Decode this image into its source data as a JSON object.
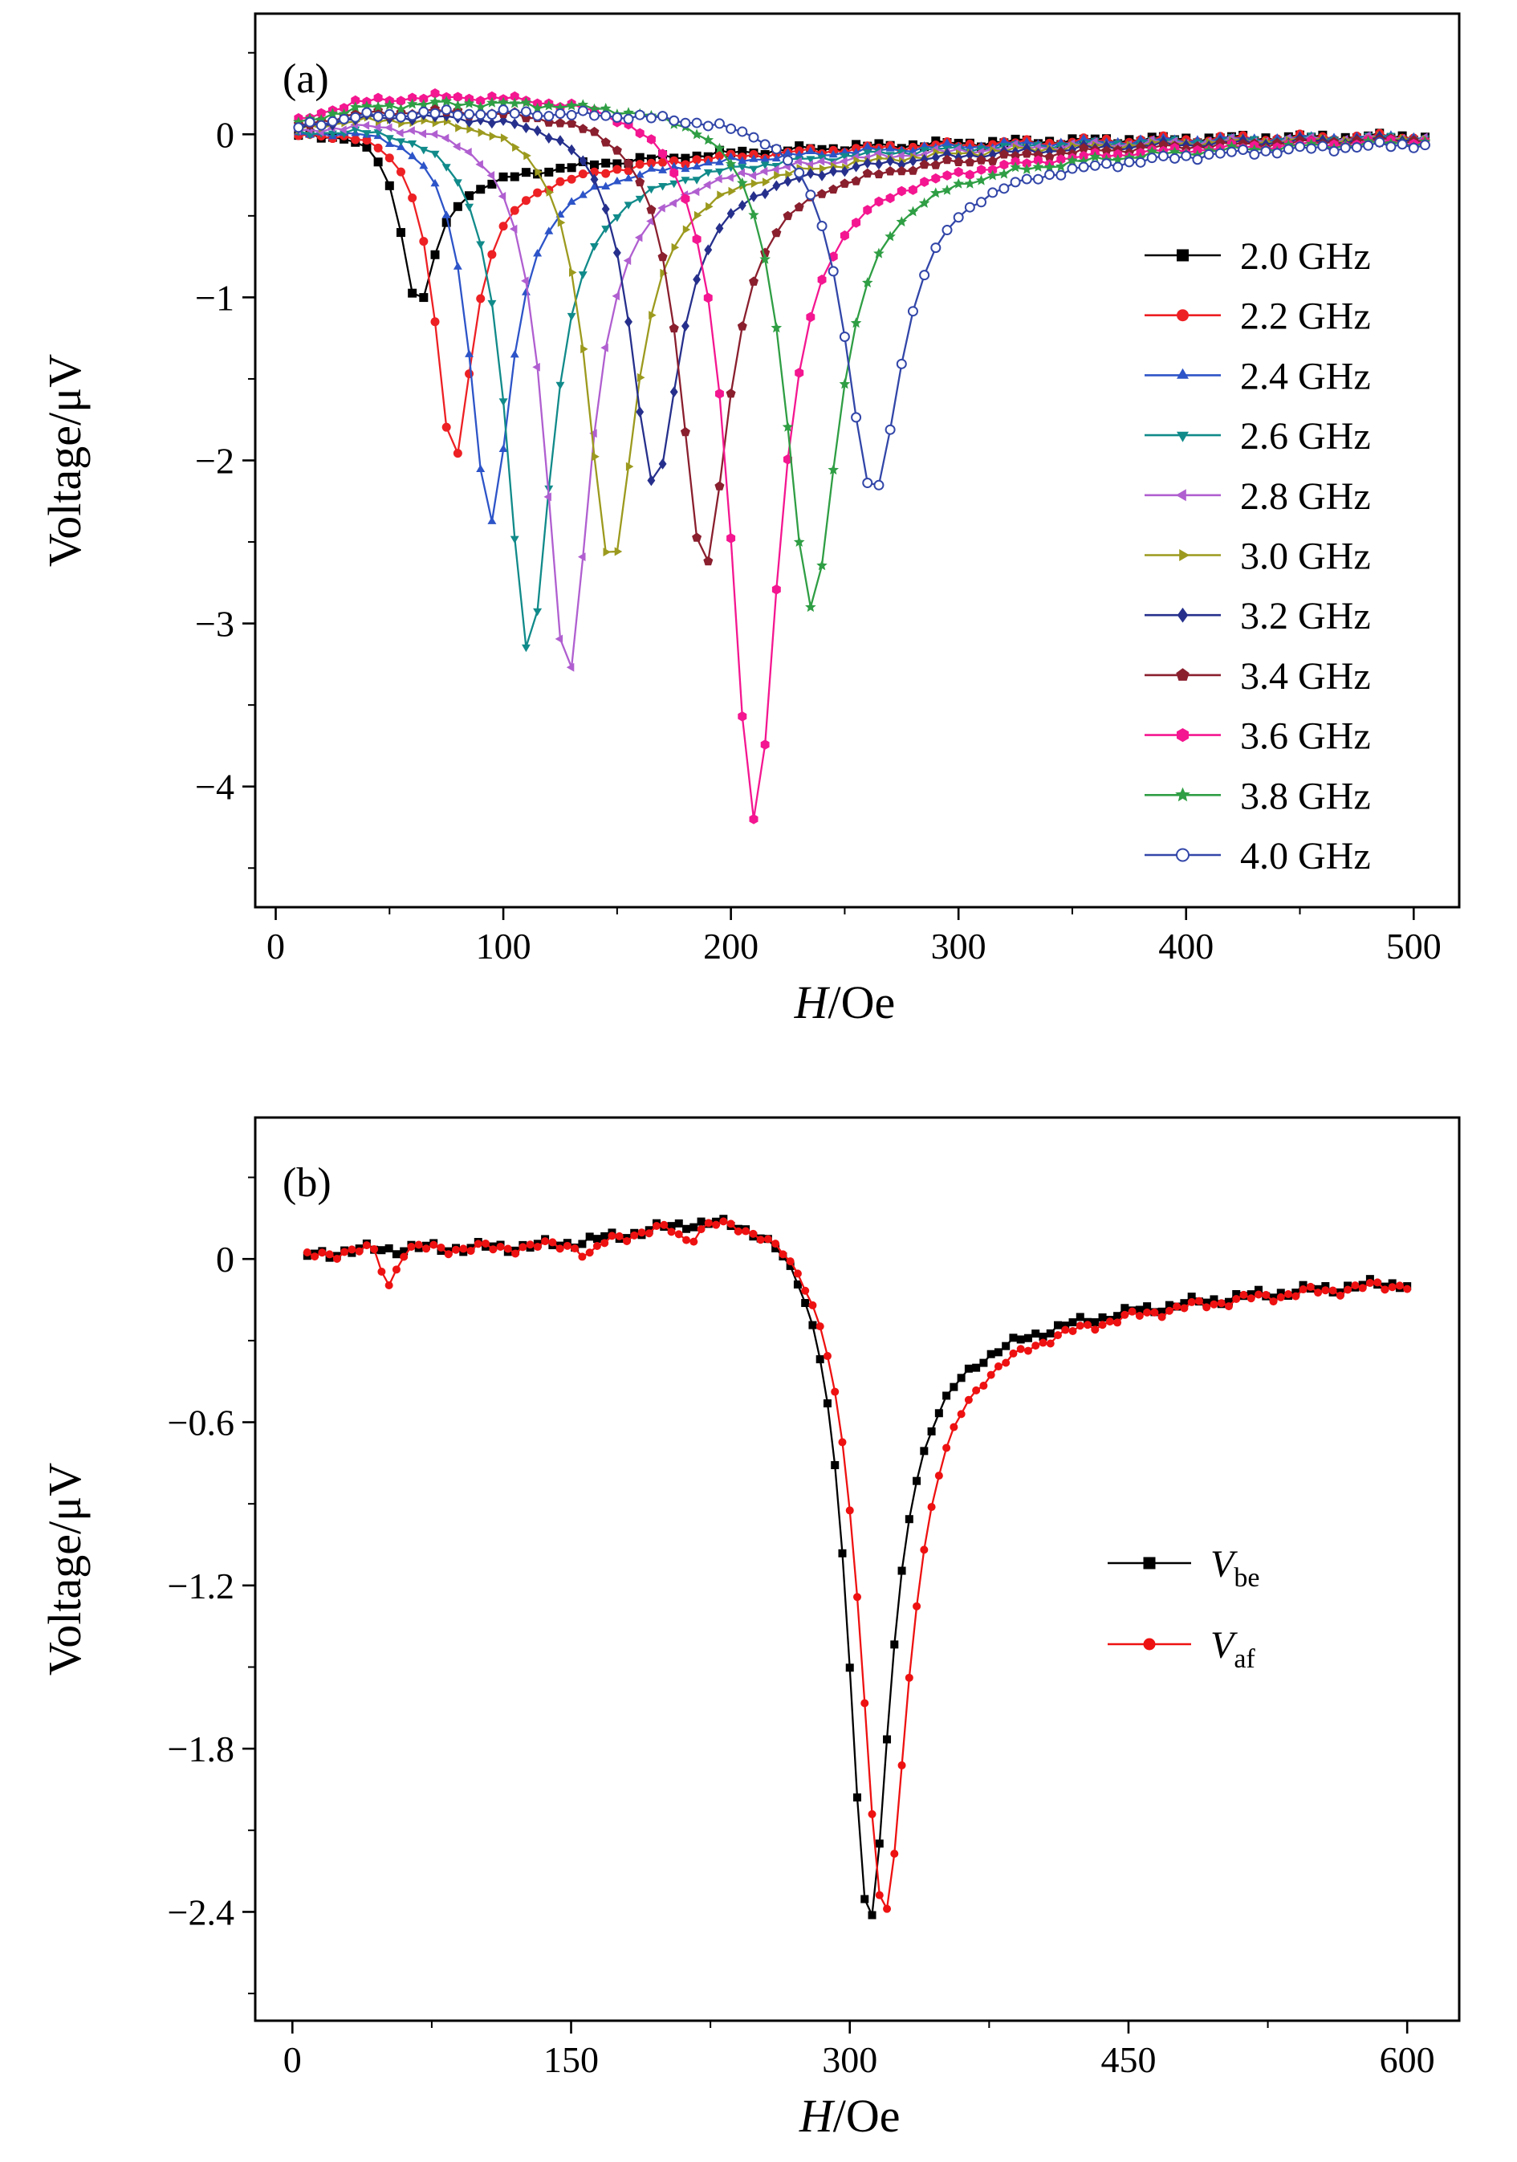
{
  "page": {
    "background": "#ffffff"
  },
  "chart_data": [
    {
      "id": "panel-a",
      "type": "line",
      "panel_tag": "(a)",
      "xlabel": {
        "var": "H",
        "rest": "/Oe"
      },
      "ylabel": "Voltage/μV",
      "x_units": "Oe",
      "y_units": "μV",
      "xlim": [
        -9,
        520
      ],
      "ylim": [
        -4.74,
        0.74
      ],
      "xticks": {
        "values": [
          0,
          100,
          200,
          300,
          400,
          500
        ],
        "labels": [
          "0",
          "100",
          "200",
          "300",
          "400",
          "500"
        ],
        "minor": [
          50,
          150,
          250,
          350,
          450
        ]
      },
      "yticks": {
        "values": [
          0,
          -1,
          -2,
          -3,
          -4
        ],
        "labels": [
          "0",
          "−1",
          "−2",
          "−3",
          "−4"
        ],
        "minor": [
          0.5,
          -0.5,
          -1.5,
          -2.5,
          -3.5,
          -4.5
        ]
      },
      "grid": false,
      "legend_position": "right",
      "sampling": {
        "H_start": 10,
        "H_end": 505,
        "H_step": 5
      },
      "tail": {
        "amp_uV": 0.3,
        "tau_Oe": 140
      },
      "noise_uV": 0.013,
      "series": [
        {
          "label": "2.0 GHz",
          "color": "#000000",
          "marker": "square",
          "resonance_field_Oe": 62,
          "min_voltage_uV": -1.05,
          "halfwidth_Oe": 9,
          "pre_plateau_uV": 0.06
        },
        {
          "label": "2.2 GHz",
          "color": "#ed2024",
          "marker": "circle",
          "resonance_field_Oe": 78,
          "min_voltage_uV": -2.0,
          "halfwidth_Oe": 10,
          "pre_plateau_uV": 0.09
        },
        {
          "label": "2.4 GHz",
          "color": "#2d54c8",
          "marker": "triangle-up",
          "resonance_field_Oe": 94,
          "min_voltage_uV": -2.38,
          "halfwidth_Oe": 11,
          "pre_plateau_uV": 0.1
        },
        {
          "label": "2.6 GHz",
          "color": "#118a8a",
          "marker": "triangle-down",
          "resonance_field_Oe": 111,
          "min_voltage_uV": -3.18,
          "halfwidth_Oe": 12,
          "pre_plateau_uV": 0.12
        },
        {
          "label": "2.8 GHz",
          "color": "#b05fd0",
          "marker": "triangle-left",
          "resonance_field_Oe": 128,
          "min_voltage_uV": -3.33,
          "halfwidth_Oe": 12,
          "pre_plateau_uV": 0.13
        },
        {
          "label": "3.0 GHz",
          "color": "#9c9a1e",
          "marker": "triangle-right",
          "resonance_field_Oe": 147,
          "min_voltage_uV": -2.65,
          "halfwidth_Oe": 13,
          "pre_plateau_uV": 0.15
        },
        {
          "label": "3.2 GHz",
          "color": "#26308c",
          "marker": "diamond",
          "resonance_field_Oe": 166,
          "min_voltage_uV": -2.15,
          "halfwidth_Oe": 13,
          "pre_plateau_uV": 0.15
        },
        {
          "label": "3.4 GHz",
          "color": "#8a1f2e",
          "marker": "pentagon",
          "resonance_field_Oe": 188,
          "min_voltage_uV": -2.65,
          "halfwidth_Oe": 13,
          "pre_plateau_uV": 0.18
        },
        {
          "label": "3.6 GHz",
          "color": "#f41690",
          "marker": "hexagon",
          "resonance_field_Oe": 210,
          "min_voltage_uV": -4.2,
          "halfwidth_Oe": 13,
          "pre_plateau_uV": 0.28
        },
        {
          "label": "3.8 GHz",
          "color": "#2f9e44",
          "marker": "star",
          "resonance_field_Oe": 235,
          "min_voltage_uV": -2.9,
          "halfwidth_Oe": 14,
          "pre_plateau_uV": 0.22
        },
        {
          "label": "4.0 GHz",
          "color": "#3246a8",
          "marker": "open-circle",
          "resonance_field_Oe": 262,
          "min_voltage_uV": -2.2,
          "halfwidth_Oe": 15,
          "pre_plateau_uV": 0.15
        }
      ]
    },
    {
      "id": "panel-b",
      "type": "line",
      "panel_tag": "(b)",
      "xlabel": {
        "var": "H",
        "rest": "/Oe"
      },
      "ylabel": "Voltage/μV",
      "x_units": "Oe",
      "y_units": "μV",
      "xlim": [
        -20,
        628
      ],
      "ylim": [
        -2.8,
        0.52
      ],
      "xticks": {
        "values": [
          0,
          150,
          300,
          450,
          600
        ],
        "labels": [
          "0",
          "150",
          "300",
          "450",
          "600"
        ],
        "minor": [
          75,
          225,
          375,
          525
        ]
      },
      "yticks": {
        "values": [
          0,
          -0.6,
          -1.2,
          -1.8,
          -2.4
        ],
        "labels": [
          "0",
          "−0.6",
          "−1.2",
          "−1.8",
          "−2.4"
        ],
        "minor": [
          0.3,
          -0.3,
          -0.9,
          -1.5,
          -2.1,
          -2.7
        ]
      },
      "grid": false,
      "legend_position": "right-middle",
      "sampling": {
        "H_start": 8,
        "H_end": 602,
        "H_step": 4
      },
      "tail": {
        "amp_uV": 0.35,
        "tau_Oe": 200
      },
      "noise_uV": 0.012,
      "baseline_bump": {
        "amp_uV": 0.16,
        "center_Oe": 250,
        "width_Oe": 75
      },
      "series": [
        {
          "label_var": "V",
          "label_sub": "be",
          "color": "#000000",
          "marker": "square",
          "resonance_field_Oe": 310,
          "min_voltage_uV": -2.43,
          "halfwidth_Oe": 14,
          "pre_plateau_uV": 0.05,
          "artifacts": []
        },
        {
          "label_var": "V",
          "label_sub": "af",
          "color": "#ee1111",
          "marker": "circle",
          "resonance_field_Oe": 318,
          "min_voltage_uV": -2.4,
          "halfwidth_Oe": 16,
          "pre_plateau_uV": 0.05,
          "artifacts": [
            {
              "center_Oe": 52,
              "depth_uV": 0.13,
              "width_Oe": 5
            },
            {
              "center_Oe": 160,
              "depth_uV": 0.05,
              "width_Oe": 7
            },
            {
              "center_Oe": 213,
              "depth_uV": 0.05,
              "width_Oe": 7
            }
          ]
        }
      ]
    }
  ]
}
